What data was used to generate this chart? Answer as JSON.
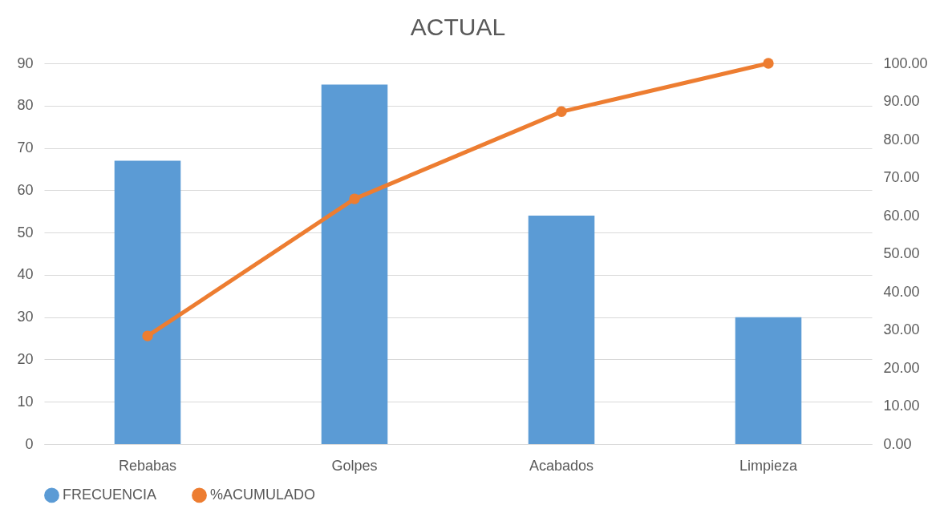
{
  "chart_data": {
    "type": "bar",
    "title": "ACTUAL",
    "categories": [
      "Rebabas",
      "Golpes",
      "Acabados",
      "Limpieza"
    ],
    "series": [
      {
        "name": "FRECUENCIA",
        "color": "#5b9bd5",
        "values": [
          67,
          85,
          54,
          30
        ]
      },
      {
        "name": "%ACUMULADO",
        "type": "line",
        "axis": "y2",
        "color": "#ed7d31",
        "values": [
          28.4,
          64.4,
          87.3,
          100
        ]
      }
    ],
    "ylim": [
      0,
      90
    ],
    "yticks": [
      0,
      10,
      20,
      30,
      40,
      50,
      60,
      70,
      80,
      90
    ],
    "y2lim": [
      0,
      100
    ],
    "y2ticks": [
      {
        "value": 0,
        "label": "0.00"
      },
      {
        "value": 10,
        "label": "10.00"
      },
      {
        "value": 20,
        "label": "20.00"
      },
      {
        "value": 30,
        "label": "30.00"
      },
      {
        "value": 40,
        "label": "40.00"
      },
      {
        "value": 50,
        "label": "50.00"
      },
      {
        "value": 60,
        "label": "60.00"
      },
      {
        "value": 70,
        "label": "70.00"
      },
      {
        "value": 80,
        "label": "80.00"
      },
      {
        "value": 90,
        "label": "90.00"
      },
      {
        "value": 100,
        "label": "100.00"
      }
    ],
    "grid": "y",
    "legend": "bottom",
    "marker": "circle"
  }
}
